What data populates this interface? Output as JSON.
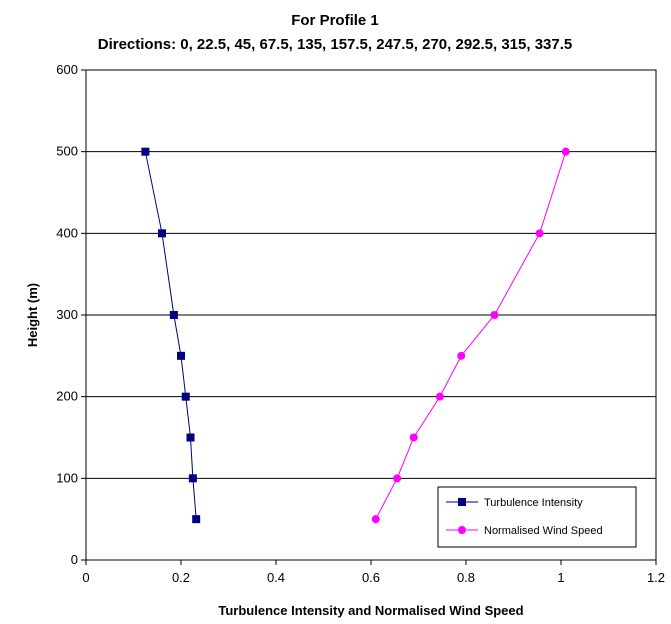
{
  "chart_data": {
    "type": "line",
    "title": "For Profile 1",
    "subtitle": "Directions: 0, 22.5, 45, 67.5, 135, 157.5, 247.5, 270, 292.5, 315, 337.5",
    "xlabel": "Turbulence Intensity and Normalised Wind Speed",
    "ylabel": "Height (m)",
    "xlim": [
      0,
      1.2
    ],
    "ylim": [
      0,
      600
    ],
    "xticks": [
      "0",
      "0.2",
      "0.4",
      "0.6",
      "0.8",
      "1",
      "1.2"
    ],
    "yticks": [
      "0",
      "100",
      "200",
      "300",
      "400",
      "500",
      "600"
    ],
    "grid": "horizontal major gridlines",
    "legend_position": "bottom-right",
    "series": [
      {
        "name": "Turbulence Intensity",
        "color": "#000080",
        "marker": "square",
        "points": [
          {
            "x": 0.125,
            "y": 500
          },
          {
            "x": 0.16,
            "y": 400
          },
          {
            "x": 0.185,
            "y": 300
          },
          {
            "x": 0.2,
            "y": 250
          },
          {
            "x": 0.21,
            "y": 200
          },
          {
            "x": 0.22,
            "y": 150
          },
          {
            "x": 0.225,
            "y": 100
          },
          {
            "x": 0.232,
            "y": 50
          }
        ]
      },
      {
        "name": "Normalised Wind Speed",
        "color": "#FF00FF",
        "marker": "circle",
        "points": [
          {
            "x": 1.01,
            "y": 500
          },
          {
            "x": 0.955,
            "y": 400
          },
          {
            "x": 0.86,
            "y": 300
          },
          {
            "x": 0.79,
            "y": 250
          },
          {
            "x": 0.745,
            "y": 200
          },
          {
            "x": 0.69,
            "y": 150
          },
          {
            "x": 0.655,
            "y": 100
          },
          {
            "x": 0.61,
            "y": 50
          }
        ]
      }
    ]
  }
}
